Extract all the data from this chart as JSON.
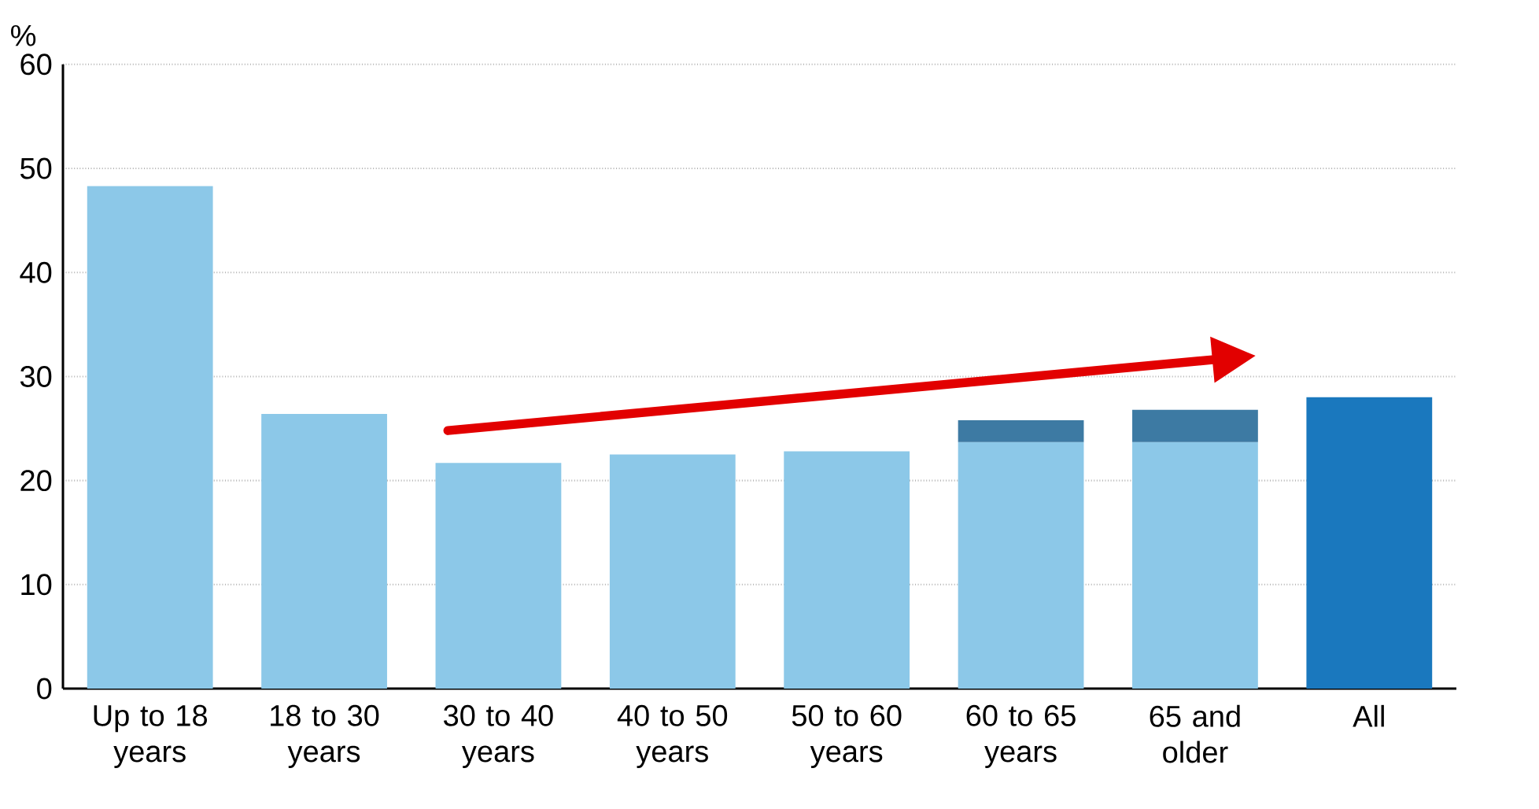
{
  "chart_data": {
    "type": "bar",
    "stacked": true,
    "ylabel": "%",
    "categories": [
      "Up to 18 years",
      "18 to 30 years",
      "30 to 40 years",
      "40 to 50 years",
      "50 to 60 years",
      "60 to 65 years",
      "65 and older",
      "All"
    ],
    "series": [
      {
        "values": [
          48.3,
          26.4,
          21.7,
          22.5,
          22.8,
          23.7,
          23.7,
          28.0
        ],
        "colors": [
          "#8cc8e8",
          "#8cc8e8",
          "#8cc8e8",
          "#8cc8e8",
          "#8cc8e8",
          "#8cc8e8",
          "#8cc8e8",
          "#1a78be"
        ]
      },
      {
        "values": [
          null,
          null,
          null,
          null,
          null,
          2.1,
          3.1,
          null
        ],
        "color": "#3d7aa3"
      }
    ],
    "ylim": [
      0,
      60
    ],
    "yticks": [
      0,
      10,
      20,
      30,
      40,
      50,
      60
    ],
    "grid": "y"
  }
}
